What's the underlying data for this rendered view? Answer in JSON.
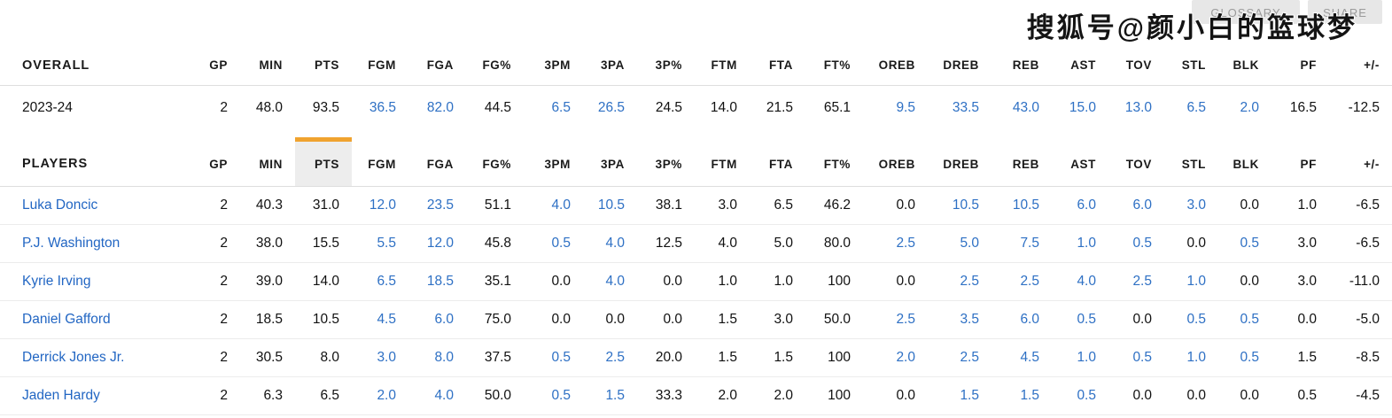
{
  "header_actions": {
    "glossary_label": "GLOSSARY",
    "share_label": "SHARE"
  },
  "watermark_text": "搜狐号@颜小白的篮球梦",
  "colors": {
    "stat_blue": "#2e70c4",
    "link_blue": "#2266c3",
    "highlight_orange": "#f0a32f",
    "highlight_bg": "#ededed"
  },
  "stat_columns": [
    "GP",
    "MIN",
    "PTS",
    "FGM",
    "FGA",
    "FG%",
    "3PM",
    "3PA",
    "3P%",
    "FTM",
    "FTA",
    "FT%",
    "OREB",
    "DREB",
    "REB",
    "AST",
    "TOV",
    "STL",
    "BLK",
    "PF",
    "+/-"
  ],
  "highlighted_column": "PTS",
  "overall_section": {
    "label": "OVERALL",
    "rows": [
      {
        "name": "2023-24",
        "values": [
          "2",
          "48.0",
          "93.5",
          "36.5",
          "82.0",
          "44.5",
          "6.5",
          "26.5",
          "24.5",
          "14.0",
          "21.5",
          "65.1",
          "9.5",
          "33.5",
          "43.0",
          "15.0",
          "13.0",
          "6.5",
          "2.0",
          "16.5",
          "-12.5"
        ],
        "blue": [
          0,
          0,
          0,
          1,
          1,
          0,
          1,
          1,
          0,
          0,
          0,
          0,
          1,
          1,
          1,
          1,
          1,
          1,
          1,
          0,
          0
        ]
      }
    ]
  },
  "players_section": {
    "label": "PLAYERS",
    "rows": [
      {
        "name": "Luka Doncic",
        "values": [
          "2",
          "40.3",
          "31.0",
          "12.0",
          "23.5",
          "51.1",
          "4.0",
          "10.5",
          "38.1",
          "3.0",
          "6.5",
          "46.2",
          "0.0",
          "10.5",
          "10.5",
          "6.0",
          "6.0",
          "3.0",
          "0.0",
          "1.0",
          "-6.5"
        ],
        "blue": [
          0,
          0,
          0,
          1,
          1,
          0,
          1,
          1,
          0,
          0,
          0,
          0,
          0,
          1,
          1,
          1,
          1,
          1,
          0,
          0,
          0
        ]
      },
      {
        "name": "P.J. Washington",
        "values": [
          "2",
          "38.0",
          "15.5",
          "5.5",
          "12.0",
          "45.8",
          "0.5",
          "4.0",
          "12.5",
          "4.0",
          "5.0",
          "80.0",
          "2.5",
          "5.0",
          "7.5",
          "1.0",
          "0.5",
          "0.0",
          "0.5",
          "3.0",
          "-6.5"
        ],
        "blue": [
          0,
          0,
          0,
          1,
          1,
          0,
          1,
          1,
          0,
          0,
          0,
          0,
          1,
          1,
          1,
          1,
          1,
          0,
          1,
          0,
          0
        ]
      },
      {
        "name": "Kyrie Irving",
        "values": [
          "2",
          "39.0",
          "14.0",
          "6.5",
          "18.5",
          "35.1",
          "0.0",
          "4.0",
          "0.0",
          "1.0",
          "1.0",
          "100",
          "0.0",
          "2.5",
          "2.5",
          "4.0",
          "2.5",
          "1.0",
          "0.0",
          "3.0",
          "-11.0"
        ],
        "blue": [
          0,
          0,
          0,
          1,
          1,
          0,
          0,
          1,
          0,
          0,
          0,
          0,
          0,
          1,
          1,
          1,
          1,
          1,
          0,
          0,
          0
        ]
      },
      {
        "name": "Daniel Gafford",
        "values": [
          "2",
          "18.5",
          "10.5",
          "4.5",
          "6.0",
          "75.0",
          "0.0",
          "0.0",
          "0.0",
          "1.5",
          "3.0",
          "50.0",
          "2.5",
          "3.5",
          "6.0",
          "0.5",
          "0.0",
          "0.5",
          "0.5",
          "0.0",
          "-5.0"
        ],
        "blue": [
          0,
          0,
          0,
          1,
          1,
          0,
          0,
          0,
          0,
          0,
          0,
          0,
          1,
          1,
          1,
          1,
          0,
          1,
          1,
          0,
          0
        ]
      },
      {
        "name": "Derrick Jones Jr.",
        "values": [
          "2",
          "30.5",
          "8.0",
          "3.0",
          "8.0",
          "37.5",
          "0.5",
          "2.5",
          "20.0",
          "1.5",
          "1.5",
          "100",
          "2.0",
          "2.5",
          "4.5",
          "1.0",
          "0.5",
          "1.0",
          "0.5",
          "1.5",
          "-8.5"
        ],
        "blue": [
          0,
          0,
          0,
          1,
          1,
          0,
          1,
          1,
          0,
          0,
          0,
          0,
          1,
          1,
          1,
          1,
          1,
          1,
          1,
          0,
          0
        ]
      },
      {
        "name": "Jaden Hardy",
        "values": [
          "2",
          "6.3",
          "6.5",
          "2.0",
          "4.0",
          "50.0",
          "0.5",
          "1.5",
          "33.3",
          "2.0",
          "2.0",
          "100",
          "0.0",
          "1.5",
          "1.5",
          "0.5",
          "0.0",
          "0.0",
          "0.0",
          "0.5",
          "-4.5"
        ],
        "blue": [
          0,
          0,
          0,
          1,
          1,
          0,
          1,
          1,
          0,
          0,
          0,
          0,
          0,
          1,
          1,
          1,
          0,
          0,
          0,
          0,
          0
        ]
      }
    ]
  }
}
